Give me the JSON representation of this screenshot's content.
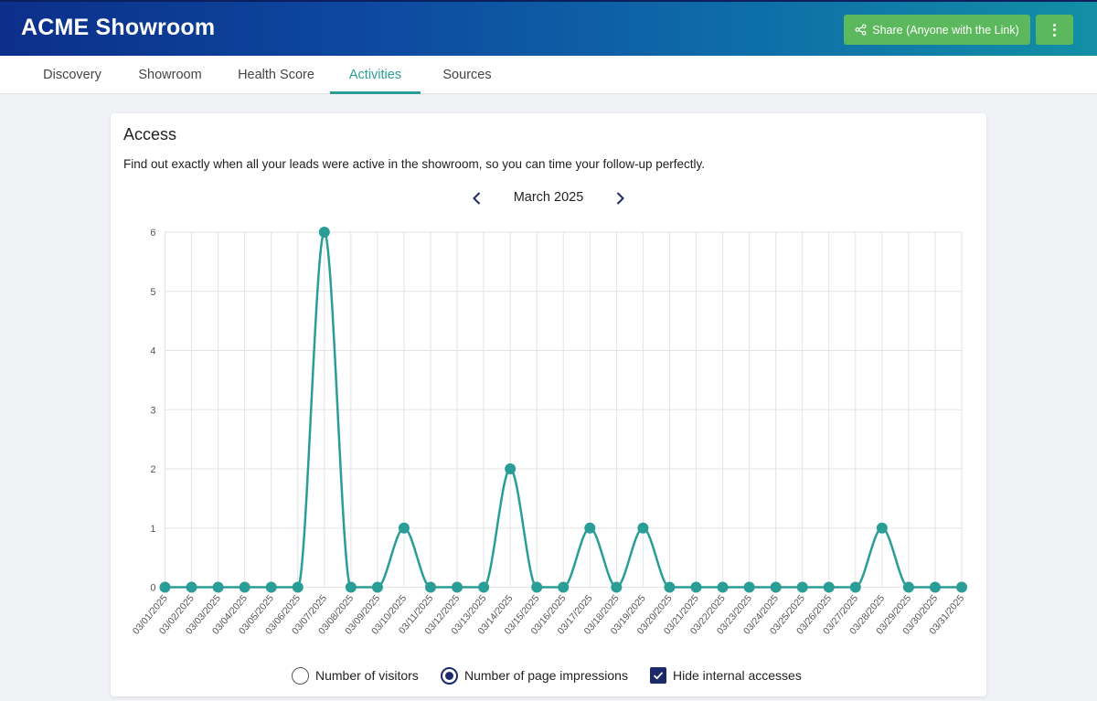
{
  "header": {
    "title": "ACME Showroom",
    "share_label": "Share (Anyone with the Link)",
    "share_icon": "share-icon",
    "more_icon": "more-vertical-icon",
    "colors": {
      "accent": "#5cb85c",
      "brand_start": "#0c2f8a",
      "brand_end": "#128fa6"
    }
  },
  "tabs": [
    {
      "label": "Discovery",
      "active": false
    },
    {
      "label": "Showroom",
      "active": false
    },
    {
      "label": "Health Score",
      "active": false
    },
    {
      "label": "Activities",
      "active": true
    },
    {
      "label": "Sources",
      "active": false
    }
  ],
  "card": {
    "title": "Access",
    "description": "Find out exactly when all your leads were active in the showroom, so you can time your follow-up perfectly.",
    "month": "March 2025",
    "prev_icon": "chevron-left-icon",
    "next_icon": "chevron-right-icon"
  },
  "controls": {
    "visitors_label": "Number of visitors",
    "impressions_label": "Number of page impressions",
    "hide_internal_label": "Hide internal accesses",
    "selected": "impressions",
    "hide_internal_checked": true
  },
  "chart_data": {
    "type": "line",
    "title": "",
    "xlabel": "",
    "ylabel": "",
    "ylim": [
      0,
      6
    ],
    "yticks": [
      0,
      1,
      2,
      3,
      4,
      5,
      6
    ],
    "grid": true,
    "smooth": true,
    "color": "#2a9d96",
    "categories": [
      "03/01/2025",
      "03/02/2025",
      "03/03/2025",
      "03/04/2025",
      "03/05/2025",
      "03/06/2025",
      "03/07/2025",
      "03/08/2025",
      "03/09/2025",
      "03/10/2025",
      "03/11/2025",
      "03/12/2025",
      "03/13/2025",
      "03/14/2025",
      "03/15/2025",
      "03/16/2025",
      "03/17/2025",
      "03/18/2025",
      "03/19/2025",
      "03/20/2025",
      "03/21/2025",
      "03/22/2025",
      "03/23/2025",
      "03/24/2025",
      "03/25/2025",
      "03/26/2025",
      "03/27/2025",
      "03/28/2025",
      "03/29/2025",
      "03/30/2025",
      "03/31/2025"
    ],
    "values": [
      0,
      0,
      0,
      0,
      0,
      0,
      6,
      0,
      0,
      1,
      0,
      0,
      0,
      2,
      0,
      0,
      1,
      0,
      1,
      0,
      0,
      0,
      0,
      0,
      0,
      0,
      0,
      1,
      0,
      0,
      0
    ]
  }
}
